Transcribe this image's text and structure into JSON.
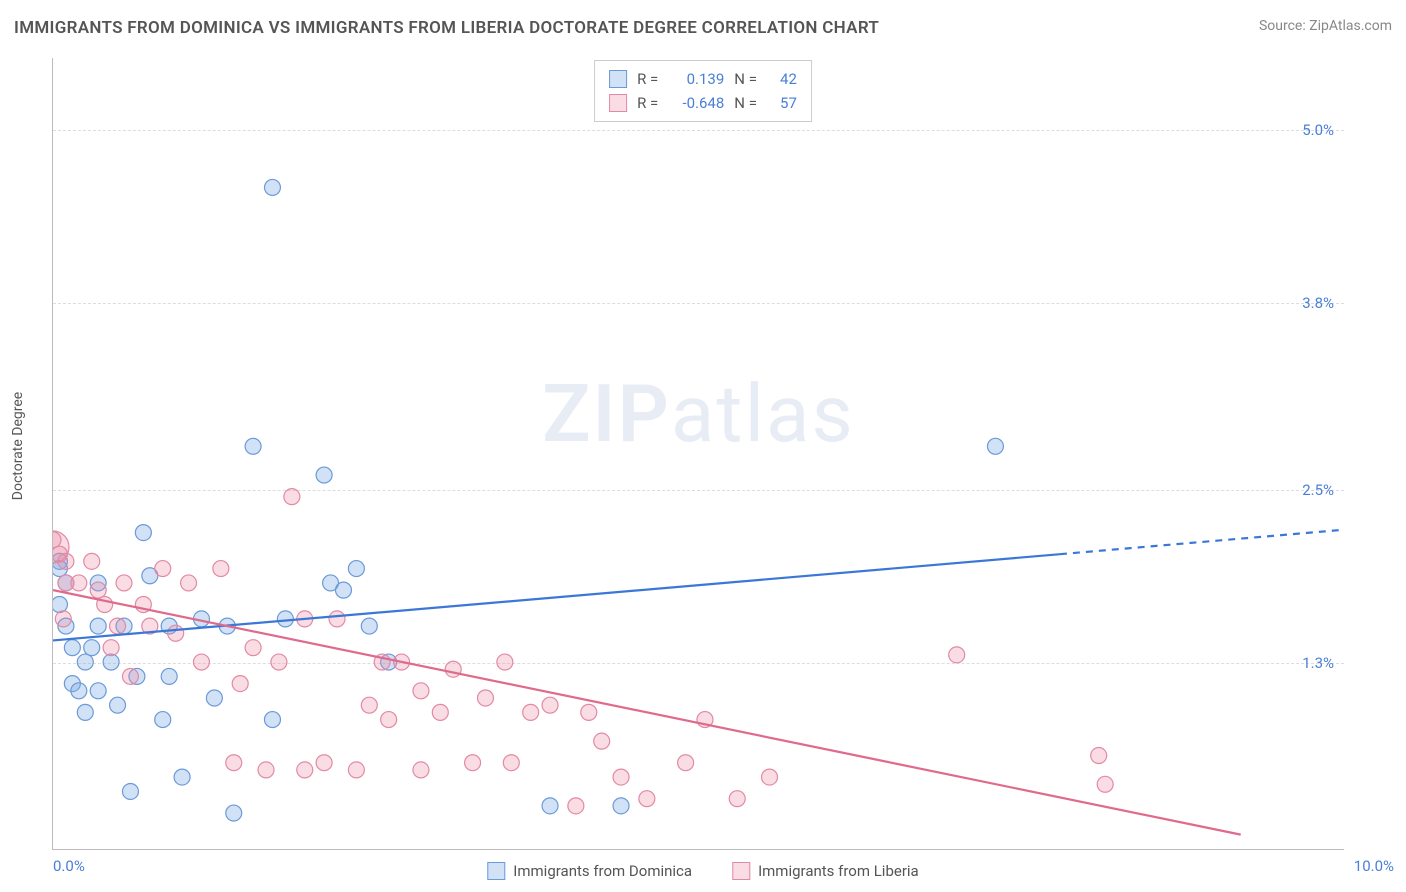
{
  "title": "IMMIGRANTS FROM DOMINICA VS IMMIGRANTS FROM LIBERIA DOCTORATE DEGREE CORRELATION CHART",
  "source_label": "Source:",
  "source_name": "ZipAtlas.com",
  "y_axis_title": "Doctorate Degree",
  "watermark_bold": "ZIP",
  "watermark_light": "atlas",
  "chart": {
    "type": "scatter",
    "background_color": "#ffffff",
    "grid_color": "#dddddd",
    "axis_color": "#bbbbbb",
    "tick_label_color": "#4a7fd8",
    "xlim": [
      0.0,
      10.0
    ],
    "ylim": [
      0.0,
      5.5
    ],
    "x_ticks": [
      {
        "v": 0.0,
        "label": "0.0%",
        "align": "left"
      },
      {
        "v": 10.0,
        "label": "10.0%",
        "align": "right"
      }
    ],
    "y_ticks": [
      {
        "v": 1.3,
        "label": "1.3%"
      },
      {
        "v": 2.5,
        "label": "2.5%"
      },
      {
        "v": 3.8,
        "label": "3.8%"
      },
      {
        "v": 5.0,
        "label": "5.0%"
      }
    ],
    "series": [
      {
        "name": "Immigrants from Dominica",
        "color_fill": "rgba(124,169,230,0.35)",
        "color_stroke": "#6b9ad8",
        "line_color": "#3b78d6",
        "marker_r": 8,
        "stats": {
          "R": "0.139",
          "N": "42"
        },
        "regression": {
          "x1": 0.0,
          "y1": 1.45,
          "x2_solid": 7.8,
          "y2_solid": 2.05,
          "x2": 10.0,
          "y2": 2.22
        },
        "points": [
          [
            0.05,
            2.0
          ],
          [
            0.05,
            1.95
          ],
          [
            0.1,
            1.85
          ],
          [
            0.05,
            1.7
          ],
          [
            0.1,
            1.55
          ],
          [
            0.15,
            1.4
          ],
          [
            0.15,
            1.15
          ],
          [
            0.2,
            1.1
          ],
          [
            0.25,
            1.3
          ],
          [
            0.3,
            1.4
          ],
          [
            0.35,
            1.55
          ],
          [
            0.25,
            0.95
          ],
          [
            0.35,
            1.1
          ],
          [
            0.55,
            1.55
          ],
          [
            0.5,
            1.0
          ],
          [
            0.6,
            0.4
          ],
          [
            0.7,
            2.2
          ],
          [
            0.75,
            1.9
          ],
          [
            0.85,
            0.9
          ],
          [
            0.9,
            1.55
          ],
          [
            1.0,
            0.5
          ],
          [
            1.15,
            1.6
          ],
          [
            1.25,
            1.05
          ],
          [
            1.35,
            1.55
          ],
          [
            1.4,
            0.25
          ],
          [
            1.55,
            2.8
          ],
          [
            1.7,
            0.9
          ],
          [
            1.7,
            4.6
          ],
          [
            1.8,
            1.6
          ],
          [
            2.1,
            2.6
          ],
          [
            2.15,
            1.85
          ],
          [
            2.25,
            1.8
          ],
          [
            2.35,
            1.95
          ],
          [
            2.45,
            1.55
          ],
          [
            2.6,
            1.3
          ],
          [
            3.85,
            0.3
          ],
          [
            4.4,
            0.3
          ],
          [
            7.3,
            2.8
          ],
          [
            0.45,
            1.3
          ],
          [
            0.35,
            1.85
          ],
          [
            0.65,
            1.2
          ],
          [
            0.9,
            1.2
          ]
        ]
      },
      {
        "name": "Immigrants from Liberia",
        "color_fill": "rgba(235,140,165,0.30)",
        "color_stroke": "#e28aa3",
        "line_color": "#e06a8c",
        "marker_r": 8,
        "stats": {
          "R": "-0.648",
          "N": "57"
        },
        "regression": {
          "x1": 0.0,
          "y1": 1.8,
          "x2_solid": 9.2,
          "y2_solid": 0.1,
          "x2": 9.2,
          "y2": 0.1
        },
        "points": [
          [
            0.05,
            2.05
          ],
          [
            0.1,
            1.85
          ],
          [
            0.1,
            2.0
          ],
          [
            0.2,
            1.85
          ],
          [
            0.3,
            2.0
          ],
          [
            0.35,
            1.8
          ],
          [
            0.4,
            1.7
          ],
          [
            0.5,
            1.55
          ],
          [
            0.55,
            1.85
          ],
          [
            0.6,
            1.2
          ],
          [
            0.7,
            1.7
          ],
          [
            0.85,
            1.95
          ],
          [
            0.95,
            1.5
          ],
          [
            1.05,
            1.85
          ],
          [
            1.15,
            1.3
          ],
          [
            1.3,
            1.95
          ],
          [
            1.4,
            0.6
          ],
          [
            1.55,
            1.4
          ],
          [
            1.65,
            0.55
          ],
          [
            1.75,
            1.3
          ],
          [
            1.85,
            2.45
          ],
          [
            1.95,
            0.55
          ],
          [
            1.95,
            1.6
          ],
          [
            2.1,
            0.6
          ],
          [
            2.2,
            1.6
          ],
          [
            2.35,
            0.55
          ],
          [
            2.45,
            1.0
          ],
          [
            2.55,
            1.3
          ],
          [
            2.7,
            1.3
          ],
          [
            2.85,
            1.1
          ],
          [
            2.85,
            0.55
          ],
          [
            3.0,
            0.95
          ],
          [
            3.1,
            1.25
          ],
          [
            3.25,
            0.6
          ],
          [
            3.35,
            1.05
          ],
          [
            3.5,
            1.3
          ],
          [
            3.7,
            0.95
          ],
          [
            3.85,
            1.0
          ],
          [
            4.05,
            0.3
          ],
          [
            4.15,
            0.95
          ],
          [
            4.4,
            0.5
          ],
          [
            4.6,
            0.35
          ],
          [
            4.9,
            0.6
          ],
          [
            5.05,
            0.9
          ],
          [
            5.55,
            0.5
          ],
          [
            7.0,
            1.35
          ],
          [
            8.1,
            0.65
          ],
          [
            8.15,
            0.45
          ],
          [
            0.0,
            2.15
          ],
          [
            0.08,
            1.6
          ],
          [
            0.45,
            1.4
          ],
          [
            0.75,
            1.55
          ],
          [
            1.45,
            1.15
          ],
          [
            2.6,
            0.9
          ],
          [
            3.55,
            0.6
          ],
          [
            4.25,
            0.75
          ],
          [
            5.3,
            0.35
          ]
        ],
        "large_points": [
          {
            "x": 0.0,
            "y": 2.1,
            "r": 16
          }
        ]
      }
    ]
  },
  "legend_top_labels": {
    "R": "R =",
    "N": "N ="
  },
  "colors": {
    "title": "#555555",
    "source": "#888888",
    "watermark": "rgba(120,150,200,0.18)"
  }
}
